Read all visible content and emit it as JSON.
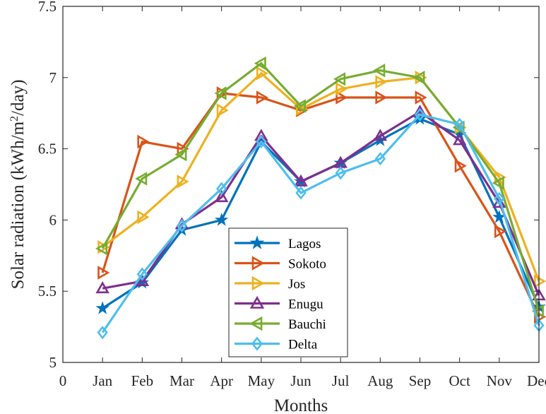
{
  "chart_data": {
    "type": "line",
    "title": "",
    "xlabel": "Months",
    "ylabel": "Solar radiation (kWh/m",
    "ylabel_superscript": "2",
    "ylabel_suffix": "/day)",
    "xlim": [
      0,
      12
    ],
    "ylim": [
      5,
      7.5
    ],
    "x_tick_values": [
      0,
      1,
      2,
      3,
      4,
      5,
      6,
      7,
      8,
      9,
      10,
      11,
      12
    ],
    "x_tick_labels": [
      "0",
      "Jan",
      "Feb",
      "Mar",
      "Apr",
      "May",
      "Jun",
      "Jul",
      "Aug",
      "Sep",
      "Oct",
      "Nov",
      "Dec"
    ],
    "y_ticks": [
      5,
      5.5,
      6,
      6.5,
      7,
      7.5
    ],
    "y_tick_labels": [
      "5",
      "5.5",
      "6",
      "6.5",
      "7",
      "7.5"
    ],
    "grid": false,
    "legend_position": "bottom-center",
    "x": [
      1,
      2,
      3,
      4,
      5,
      6,
      7,
      8,
      9,
      10,
      11,
      12
    ],
    "series": [
      {
        "name": "Lagos",
        "color": "#0072BD",
        "marker": "star",
        "values": [
          5.38,
          5.56,
          5.93,
          6.0,
          6.55,
          6.27,
          6.4,
          6.56,
          6.71,
          6.6,
          6.02,
          5.39
        ]
      },
      {
        "name": "Sokoto",
        "color": "#D95319",
        "marker": "triangle-right",
        "values": [
          5.63,
          6.55,
          6.5,
          6.89,
          6.86,
          6.77,
          6.86,
          6.86,
          6.86,
          6.38,
          5.92,
          5.32
        ]
      },
      {
        "name": "Jos",
        "color": "#EDB120",
        "marker": "triangle-right",
        "values": [
          5.81,
          6.02,
          6.27,
          6.77,
          7.03,
          6.78,
          6.92,
          6.97,
          7.0,
          6.65,
          6.3,
          5.57
        ]
      },
      {
        "name": "Enugu",
        "color": "#7E2F8E",
        "marker": "triangle-up",
        "values": [
          5.52,
          5.57,
          5.97,
          6.16,
          6.59,
          6.27,
          6.4,
          6.59,
          6.76,
          6.56,
          6.12,
          5.47
        ]
      },
      {
        "name": "Bauchi",
        "color": "#77AC30",
        "marker": "triangle-left",
        "values": [
          5.8,
          6.29,
          6.46,
          6.89,
          7.1,
          6.8,
          6.99,
          7.05,
          7.0,
          6.65,
          6.26,
          5.36
        ]
      },
      {
        "name": "Delta",
        "color": "#4DBEEE",
        "marker": "diamond",
        "values": [
          5.21,
          5.62,
          5.96,
          6.22,
          6.55,
          6.19,
          6.33,
          6.43,
          6.74,
          6.67,
          6.15,
          5.26
        ]
      }
    ]
  }
}
